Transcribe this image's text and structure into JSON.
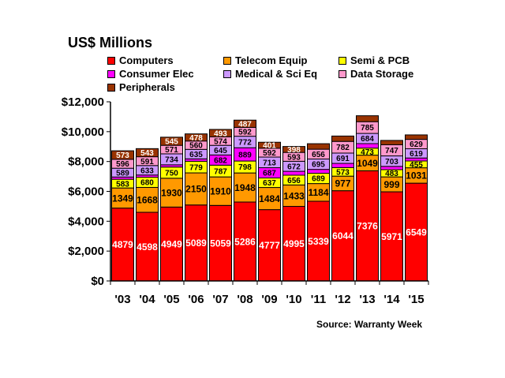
{
  "chart_data": {
    "type": "bar",
    "stacked": true,
    "title": "US$ Millions",
    "source": "Source: Warranty Week",
    "categories": [
      "'03",
      "'04",
      "'05",
      "'06",
      "'07",
      "'08",
      "'09",
      "'10",
      "'11",
      "'12",
      "'13",
      "'14",
      "'15"
    ],
    "ylim": [
      0,
      12000
    ],
    "yticks": [
      0,
      2000,
      4000,
      6000,
      8000,
      10000,
      12000
    ],
    "ytick_labels": [
      "$0",
      "$2,000",
      "$4,000",
      "$6,000",
      "$8,000",
      "$10,000",
      "$12,000"
    ],
    "grid": false,
    "legend_position": "top",
    "series": [
      {
        "name": "Computers",
        "color": "#ff0000",
        "values": [
          4879,
          4598,
          4949,
          5089,
          5059,
          5286,
          4777,
          4995,
          5339,
          6044,
          7376,
          5971,
          6549
        ],
        "show_labels": [
          true,
          true,
          true,
          true,
          true,
          true,
          true,
          true,
          true,
          true,
          true,
          true,
          true
        ]
      },
      {
        "name": "Telecom Equip",
        "color": "#ff9900",
        "values": [
          1349,
          1668,
          1930,
          2150,
          1910,
          1948,
          1484,
          1433,
          1184,
          977,
          1049,
          999,
          1031
        ],
        "show_labels": [
          true,
          true,
          true,
          true,
          true,
          true,
          true,
          true,
          true,
          true,
          true,
          true,
          true
        ]
      },
      {
        "name": "Semi & PCB",
        "color": "#ffff00",
        "values": [
          583,
          680,
          750,
          779,
          787,
          798,
          637,
          656,
          689,
          573,
          473,
          483,
          455
        ],
        "show_labels": [
          true,
          true,
          true,
          true,
          true,
          true,
          true,
          true,
          true,
          true,
          true,
          true,
          true
        ]
      },
      {
        "name": "Consumer Elec",
        "color": "#ff00ff",
        "values": [
          150,
          150,
          150,
          160,
          682,
          889,
          687,
          260,
          260,
          280,
          300,
          220,
          200
        ],
        "show_labels": [
          false,
          false,
          false,
          false,
          true,
          true,
          true,
          false,
          false,
          false,
          false,
          false,
          false
        ]
      },
      {
        "name": "Medical & Sci Eq",
        "color": "#cc99ff",
        "values": [
          589,
          633,
          734,
          635,
          645,
          772,
          713,
          672,
          695,
          691,
          684,
          703,
          619
        ],
        "show_labels": [
          true,
          true,
          true,
          true,
          true,
          true,
          true,
          true,
          true,
          true,
          true,
          true,
          true
        ]
      },
      {
        "name": "Data Storage",
        "color": "#ff99cc",
        "values": [
          596,
          591,
          571,
          560,
          574,
          592,
          592,
          593,
          656,
          782,
          785,
          747,
          629
        ],
        "show_labels": [
          true,
          true,
          true,
          true,
          true,
          true,
          true,
          true,
          true,
          true,
          true,
          true,
          true
        ]
      },
      {
        "name": "Peripherals",
        "color": "#993300",
        "values": [
          573,
          543,
          545,
          478,
          493,
          487,
          401,
          398,
          370,
          360,
          400,
          290,
          300
        ],
        "show_labels": [
          true,
          true,
          true,
          true,
          true,
          true,
          true,
          true,
          false,
          false,
          false,
          false,
          false
        ]
      }
    ],
    "segment_label_font": {
      "small": 10,
      "large": 12
    }
  }
}
